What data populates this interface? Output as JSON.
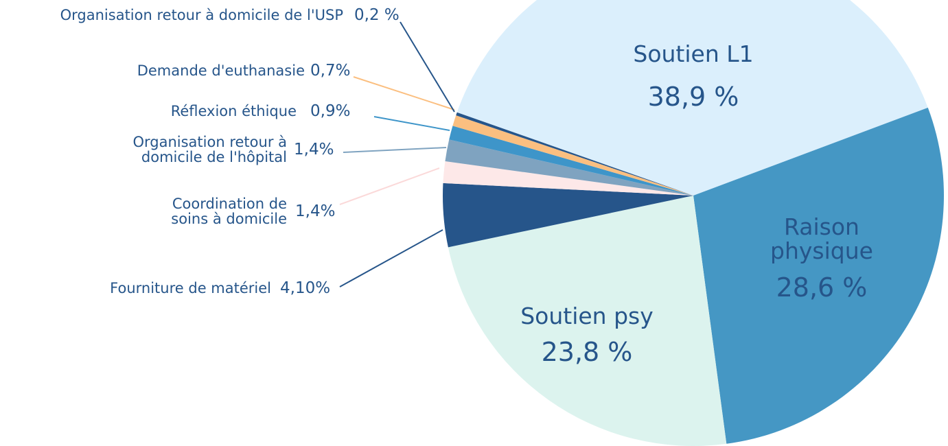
{
  "chart_data": {
    "type": "pie",
    "categories": [
      "Soutien L1",
      "Raison physique",
      "Soutien psy",
      "Fourniture de matériel",
      "Coordination de soins à domicile",
      "Organisation retour à domicile de l'hôpital",
      "Réflexion éthique",
      "Demande d'euthanasie",
      "Organisation retour à domicile de l'USP"
    ],
    "values": [
      38.9,
      28.6,
      23.8,
      4.1,
      1.4,
      1.4,
      0.9,
      0.7,
      0.2
    ],
    "value_labels": [
      "38,9 %",
      "28,6 %",
      "23,8 %",
      "4,10%",
      "1,4%",
      "1,4%",
      "0,9%",
      "0,7%",
      "0,2 %"
    ],
    "colors": [
      "#dbeffc",
      "#4597c4",
      "#dcf3ee",
      "#26558a",
      "#fde8e8",
      "#7fa3c0",
      "#3e95c9",
      "#fbbf80",
      "#26558a"
    ]
  }
}
